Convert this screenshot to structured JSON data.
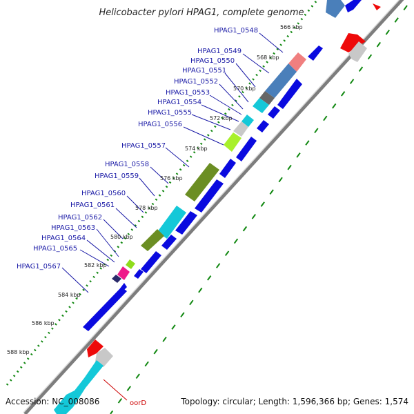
{
  "title": "Helicobacter pylori HPAG1, complete genome",
  "footer": {
    "accession": "Accession: NC_008086",
    "topology": "Topology: circular; Length: 1,596,366 bp; Genes: 1,574"
  },
  "colors": {
    "gene_blue": "#0a0adf",
    "gene_red": "#ee0a0a",
    "label_blue": "#1a1aa6",
    "tick_green": "#118811",
    "backbone": "#8c8c8c"
  },
  "kbp_ticks": [
    "566 kbp",
    "568 kbp",
    "570 kbp",
    "572 kbp",
    "574 kbp",
    "576 kbp",
    "578 kbp",
    "580 kbp",
    "582 kbp",
    "584 kbp",
    "586 kbp",
    "588 kbp"
  ],
  "gene_labels": [
    "HPAG1_0548",
    "HPAG1_0549",
    "HPAG1_0550",
    "HPAG1_0551",
    "HPAG1_0552",
    "HPAG1_0553",
    "HPAG1_0554",
    "HPAG1_0555",
    "HPAG1_0556",
    "HPAG1_0557",
    "HPAG1_0558",
    "HPAG1_0559",
    "HPAG1_0560",
    "HPAG1_0561",
    "HPAG1_0562",
    "HPAG1_0563",
    "HPAG1_0564",
    "HPAG1_0565",
    "HPAG1_0567"
  ],
  "feature_label": "oorD"
}
